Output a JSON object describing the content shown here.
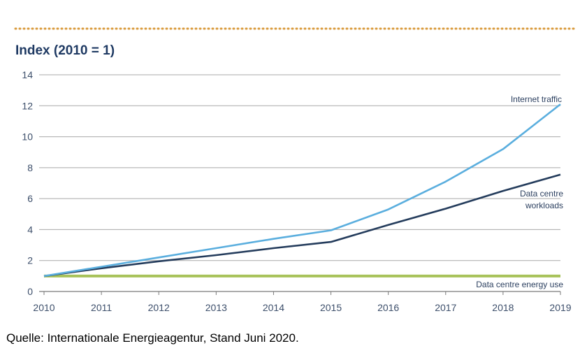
{
  "colors": {
    "accent_dots": "#d99a3c",
    "title": "#1f3a63",
    "grid": "#a9a9a9",
    "axis": "#7a7a7a",
    "tick_text": "#3d4f6b"
  },
  "chart_data": {
    "type": "line",
    "title": "",
    "ylabel": "Index (2010 = 1)",
    "xlabel": "",
    "x": [
      "2010",
      "2011",
      "2012",
      "2013",
      "2014",
      "2015",
      "2016",
      "2017",
      "2018",
      "2019"
    ],
    "ylim": [
      0,
      14
    ],
    "yticks": [
      "0",
      "2",
      "4",
      "6",
      "8",
      "10",
      "12",
      "14"
    ],
    "grid": "horizontal",
    "series": [
      {
        "name": "Internet traffic",
        "color": "#5aaede",
        "values": [
          1,
          1.6,
          2.2,
          2.8,
          3.4,
          3.95,
          5.3,
          7.1,
          9.2,
          12.1
        ]
      },
      {
        "name": "Data centre workloads",
        "color": "#243c5c",
        "values": [
          1,
          1.5,
          1.95,
          2.35,
          2.8,
          3.2,
          4.3,
          5.35,
          6.5,
          7.55
        ]
      },
      {
        "name": "Data centre energy use",
        "color": "#a8c25a",
        "values": [
          1,
          1,
          1,
          1,
          1,
          1,
          1,
          1,
          1,
          1
        ]
      }
    ]
  },
  "source_note": "Quelle: Internationale Energieagentur, Stand Juni 2020."
}
